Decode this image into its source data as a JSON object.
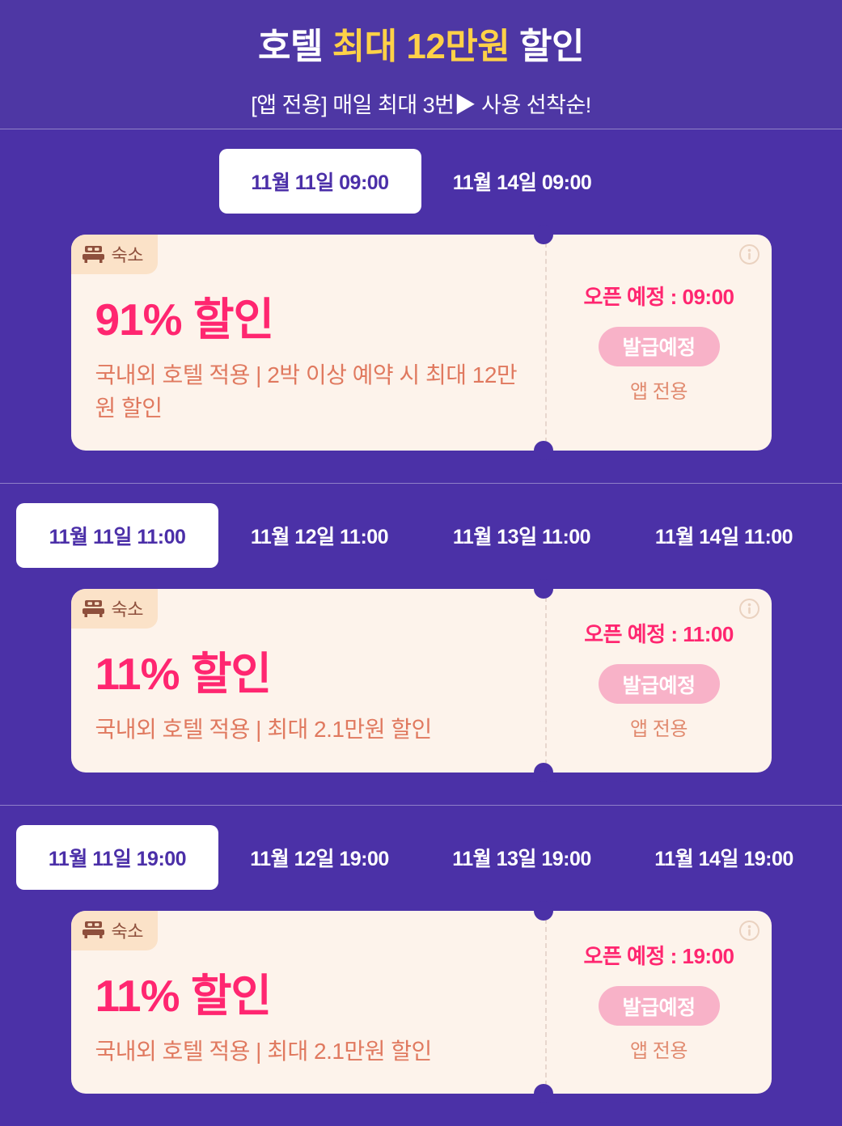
{
  "header": {
    "title": {
      "pre": "호텔 ",
      "highlight": "최대 12만원",
      "post": " 할인"
    },
    "subtitle": "[앱 전용] 매일 최대 3번▶ 사용 선착순!"
  },
  "sections": [
    {
      "tabs": [
        {
          "label": "11월 11일 09:00",
          "selected": true
        },
        {
          "label": "11월 14일 09:00",
          "selected": false
        }
      ],
      "tabs_centered": true,
      "coupon": {
        "badge": "숙소",
        "title": "91% 할인",
        "desc": "국내외 호텔 적용 | 2박 이상 예약 시 최대 12만원 할인",
        "open": "오픈 예정 : 09:00",
        "button": "발급예정",
        "app_only": "앱 전용"
      }
    },
    {
      "tabs": [
        {
          "label": "11월 11일 11:00",
          "selected": true
        },
        {
          "label": "11월 12일 11:00",
          "selected": false
        },
        {
          "label": "11월 13일 11:00",
          "selected": false
        },
        {
          "label": "11월 14일 11:00",
          "selected": false
        }
      ],
      "tabs_centered": false,
      "coupon": {
        "badge": "숙소",
        "title": "11% 할인",
        "desc": "국내외 호텔 적용 | 최대 2.1만원 할인",
        "open": "오픈 예정 : 11:00",
        "button": "발급예정",
        "app_only": "앱 전용"
      }
    },
    {
      "tabs": [
        {
          "label": "11월 11일 19:00",
          "selected": true
        },
        {
          "label": "11월 12일 19:00",
          "selected": false
        },
        {
          "label": "11월 13일 19:00",
          "selected": false
        },
        {
          "label": "11월 14일 19:00",
          "selected": false
        }
      ],
      "tabs_centered": false,
      "coupon": {
        "badge": "숙소",
        "title": "11% 할인",
        "desc": "국내외 호텔 적용 | 최대 2.1만원 할인",
        "open": "오픈 예정 : 19:00",
        "button": "발급예정",
        "app_only": "앱 전용"
      }
    }
  ],
  "colors": {
    "header_bg": "#4E37A4",
    "section_bg": "#4B31A7",
    "accent_pink": "#FF2670",
    "highlight_yellow": "#FFD147",
    "card_bg": "#FDF3EB",
    "badge_bg": "#FBE2C8",
    "badge_fg": "#8E4F3C",
    "desc_salmon": "#E0795F",
    "app_only_salmon": "#E18A6F",
    "button_bg": "#F8B2C8",
    "button_fg": "#FFFFFF",
    "tab_selected_fg": "#4B2FA8",
    "dash": "#E8D7CE",
    "info_icon": "#EAD2C0"
  }
}
